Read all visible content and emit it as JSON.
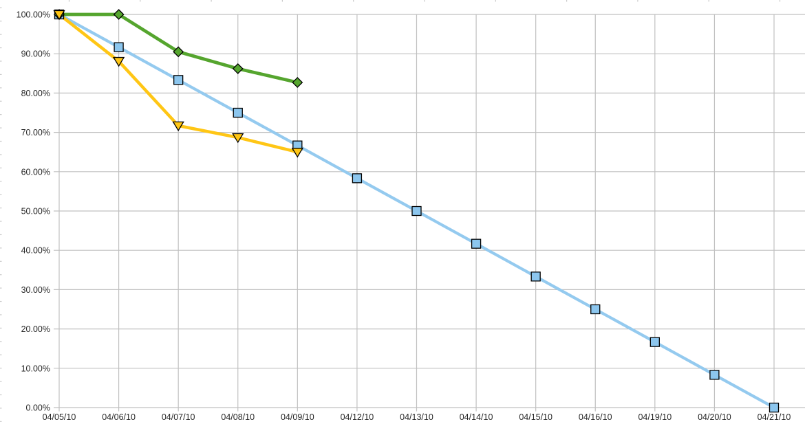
{
  "chart_data": {
    "type": "line",
    "title": "",
    "x_tick_labels": [
      "04/05/10",
      "04/06/10",
      "04/07/10",
      "04/08/10",
      "04/09/10",
      "04/12/10",
      "04/13/10",
      "04/14/10",
      "04/15/10",
      "04/16/10",
      "04/19/10",
      "04/20/10",
      "04/21/10"
    ],
    "y_tick_labels": [
      "100.00%",
      "90.00%",
      "80.00%",
      "70.00%",
      "60.00%",
      "50.00%",
      "40.00%",
      "30.00%",
      "20.00%",
      "10.00%",
      "0.00%"
    ],
    "y_axis": {
      "min": 0,
      "max": 100,
      "step": 10,
      "format": "percent-2-decimals"
    },
    "grid": true,
    "legend": false,
    "series": [
      {
        "name": "ideal-burndown-blue-squares",
        "marker": "square",
        "line_color": "#94CAEF",
        "marker_fill": "#8CC6EE",
        "values": [
          100,
          91.67,
          83.33,
          75,
          66.67,
          58.33,
          50,
          41.67,
          33.33,
          25,
          16.67,
          8.33,
          0
        ]
      },
      {
        "name": "green-diamonds",
        "marker": "diamond",
        "line_color": "#55A52E",
        "marker_fill": "#55A52E",
        "values": [
          100,
          100,
          90.5,
          86.2,
          82.7
        ]
      },
      {
        "name": "yellow-triangles",
        "marker": "triangle-down",
        "line_color": "#FFC615",
        "marker_fill": "#FFC615",
        "values": [
          100,
          88.1,
          71.7,
          68.7,
          65.0
        ]
      }
    ],
    "colors": {
      "gridline": "#C0C0C0",
      "axis_text": "#262626",
      "marker_border": "#000000",
      "spreadsheet_grid_stub": "#C9C9C9"
    }
  }
}
